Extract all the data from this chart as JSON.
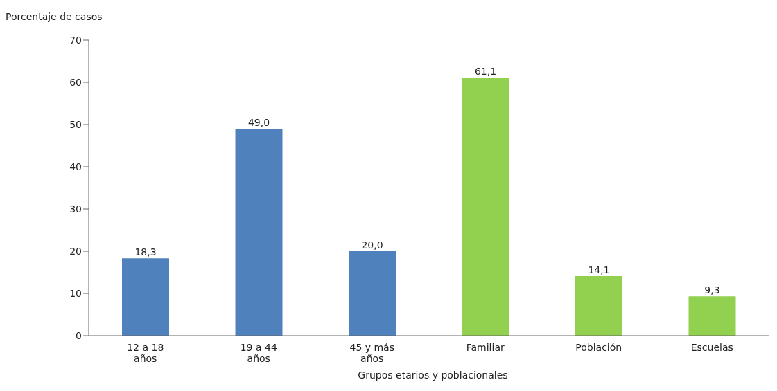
{
  "chart_data": {
    "type": "bar",
    "ylabel": "Porcentaje de casos",
    "xlabel": "Grupos etarios y poblacionales",
    "categories": [
      "12 a 18 años",
      "19 a 44 años",
      "45 y más años",
      "Familiar",
      "Población",
      "Escuelas"
    ],
    "values": [
      18.3,
      49.0,
      20.0,
      61.1,
      14.1,
      9.3
    ],
    "colors": [
      "#4f81bd",
      "#4f81bd",
      "#4f81bd",
      "#92d050",
      "#92d050",
      "#92d050"
    ],
    "value_labels": [
      "18,3",
      "49,0",
      "20,0",
      "61,1",
      "14,1",
      "9,3"
    ],
    "ylim": [
      0,
      70
    ],
    "yticks": [
      0,
      10,
      20,
      30,
      40,
      50,
      60,
      70
    ],
    "grid": false,
    "legend": false
  }
}
